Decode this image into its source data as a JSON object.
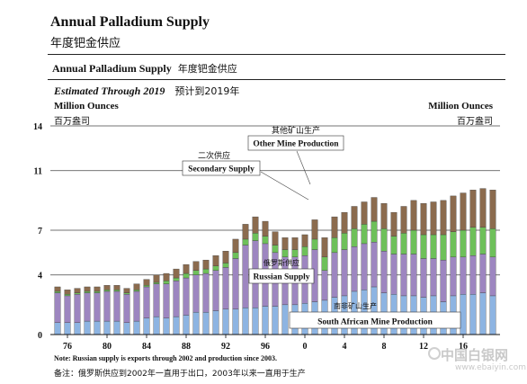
{
  "header": {
    "title_en": "Annual Palladium Supply",
    "title_cn": "年度钯金供应",
    "subtitle_en": "Annual Palladium Supply",
    "subtitle_cn": "年度钯金供应",
    "estimate_en": "Estimated Through 2019",
    "estimate_cn": "预计到2019年",
    "unit_left_en": "Million Ounces",
    "unit_left_cn": "百万盎司",
    "unit_right_en": "Million Ounces",
    "unit_right_cn": "百万盎司"
  },
  "notes": {
    "note_en": "Note: Russian supply is exports through 2002 and production since 2003.",
    "note_cn": "备注：俄罗斯供应到2002年一直用于出口，2003年以来一直用于生产"
  },
  "watermark": {
    "name": "中国白银网",
    "url": "www.ebaiyin.com"
  },
  "chart_data": {
    "type": "bar",
    "stacked": true,
    "ylim": [
      0,
      14
    ],
    "yticks": [
      0,
      4,
      7,
      11,
      14
    ],
    "x_tick_labels": [
      "76",
      "80",
      "84",
      "88",
      "92",
      "96",
      "0",
      "4",
      "8",
      "12",
      "16"
    ],
    "x_tick_years": [
      1976,
      1980,
      1984,
      1988,
      1992,
      1996,
      2000,
      2004,
      2008,
      2012,
      2016
    ],
    "categories": [
      1975,
      1976,
      1977,
      1978,
      1979,
      1980,
      1981,
      1982,
      1983,
      1984,
      1985,
      1986,
      1987,
      1988,
      1989,
      1990,
      1991,
      1992,
      1993,
      1994,
      1995,
      1996,
      1997,
      1998,
      1999,
      2000,
      2001,
      2002,
      2003,
      2004,
      2005,
      2006,
      2007,
      2008,
      2009,
      2010,
      2011,
      2012,
      2013,
      2014,
      2015,
      2016,
      2017,
      2018,
      2019
    ],
    "series": [
      {
        "name": "South African Mine Production",
        "color": "#8db4e2",
        "values": [
          0.8,
          0.8,
          0.8,
          0.9,
          0.9,
          0.9,
          0.9,
          0.8,
          0.9,
          1.1,
          1.2,
          1.1,
          1.2,
          1.3,
          1.5,
          1.5,
          1.6,
          1.7,
          1.7,
          1.8,
          1.8,
          1.9,
          1.9,
          2.0,
          2.0,
          2.1,
          2.2,
          2.3,
          2.5,
          2.6,
          2.9,
          3.0,
          3.2,
          2.8,
          2.7,
          2.6,
          2.6,
          2.5,
          2.6,
          2.2,
          2.6,
          2.7,
          2.7,
          2.8,
          2.6
        ]
      },
      {
        "name": "Russian Supply",
        "color": "#9d86c0",
        "values": [
          2.0,
          1.8,
          1.9,
          1.9,
          1.9,
          2.0,
          2.0,
          1.9,
          2.0,
          2.1,
          2.2,
          2.3,
          2.4,
          2.5,
          2.5,
          2.6,
          2.7,
          2.8,
          3.4,
          4.2,
          4.5,
          4.2,
          3.6,
          3.2,
          3.2,
          3.2,
          3.5,
          2.0,
          3.0,
          3.1,
          3.0,
          3.1,
          3.0,
          2.8,
          2.7,
          2.8,
          2.8,
          2.6,
          2.5,
          2.8,
          2.6,
          2.5,
          2.6,
          2.6,
          2.6
        ]
      },
      {
        "name": "Secondary Supply",
        "color": "#6ec05a",
        "values": [
          0.1,
          0.1,
          0.1,
          0.1,
          0.1,
          0.1,
          0.1,
          0.1,
          0.1,
          0.1,
          0.1,
          0.2,
          0.2,
          0.3,
          0.3,
          0.3,
          0.3,
          0.3,
          0.4,
          0.4,
          0.5,
          0.5,
          0.5,
          0.5,
          0.5,
          0.6,
          0.7,
          0.9,
          1.0,
          1.1,
          1.2,
          1.3,
          1.4,
          1.5,
          1.2,
          1.4,
          1.6,
          1.6,
          1.6,
          1.7,
          1.7,
          1.8,
          1.9,
          1.8,
          1.9
        ]
      },
      {
        "name": "Other Mine Production",
        "color": "#8b6b4e",
        "values": [
          0.3,
          0.3,
          0.3,
          0.3,
          0.3,
          0.3,
          0.3,
          0.3,
          0.4,
          0.4,
          0.5,
          0.5,
          0.6,
          0.6,
          0.6,
          0.6,
          0.7,
          0.8,
          0.9,
          1.0,
          1.1,
          1.0,
          0.9,
          0.8,
          0.8,
          0.8,
          1.3,
          1.3,
          1.4,
          1.4,
          1.5,
          1.5,
          1.6,
          1.7,
          1.6,
          1.8,
          2.0,
          2.1,
          2.2,
          2.3,
          2.4,
          2.5,
          2.5,
          2.6,
          2.6
        ]
      }
    ],
    "annotations": [
      {
        "en": "Other Mine Production",
        "cn": "其他矿山生产"
      },
      {
        "en": "Secondary Supply",
        "cn": "二次供应"
      },
      {
        "en": "Russian Supply",
        "cn": "俄罗斯供应"
      },
      {
        "en": "South African Mine Production",
        "cn": "南非矿山生产"
      }
    ]
  }
}
